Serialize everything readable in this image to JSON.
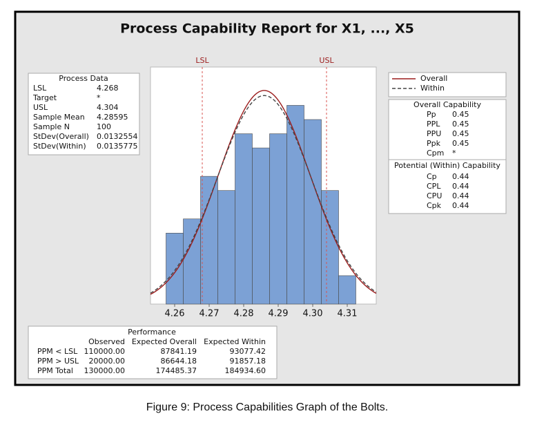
{
  "chart_data": {
    "type": "histogram",
    "title": "Process Capability Report for X1, ..., X5",
    "bins": [
      4.2575,
      4.2625,
      4.2675,
      4.2725,
      4.2775,
      4.2825,
      4.2875,
      4.2925,
      4.2975,
      4.3025,
      4.3075,
      4.3125
    ],
    "counts": [
      5,
      6,
      9,
      8,
      12,
      11,
      12,
      14,
      13,
      8,
      2
    ],
    "color": "#7ca1d5",
    "xlim": [
      4.253,
      4.3184
    ],
    "xticks": [
      4.26,
      4.27,
      4.28,
      4.29,
      {
        "value": 4.3,
        "label": "4.30"
      },
      4.31
    ],
    "ylim": [
      0,
      16.7
    ],
    "reference_lines": [
      {
        "label": "LSL",
        "value": 4.268
      },
      {
        "label": "USL",
        "value": 4.304
      }
    ],
    "reference_color": "#d9534f",
    "curves": [
      {
        "name": "Overall",
        "color": "#9b1c1c",
        "dashed": false
      },
      {
        "name": "Within",
        "color": "#444444",
        "dashed": true
      }
    ]
  },
  "process_data": {
    "title": "Process Data",
    "rows": [
      [
        "LSL",
        4.268
      ],
      [
        "Target",
        "*"
      ],
      [
        "USL",
        4.304
      ],
      [
        "Sample Mean",
        4.28595
      ],
      [
        "Sample N",
        100
      ],
      [
        "StDev(Overall)",
        0.0132554
      ],
      [
        "StDev(Within)",
        0.0135775
      ]
    ]
  },
  "overall_capability": {
    "title": "Overall Capability",
    "rows": [
      [
        "Pp",
        "0.45"
      ],
      [
        "PPL",
        "0.45"
      ],
      [
        "PPU",
        "0.45"
      ],
      [
        "Ppk",
        "0.45"
      ],
      [
        "Cpm",
        "*"
      ]
    ]
  },
  "potential_capability": {
    "title": "Potential (Within) Capability",
    "rows": [
      [
        "Cp",
        "0.44"
      ],
      [
        "CPL",
        "0.44"
      ],
      [
        "CPU",
        "0.44"
      ],
      [
        "Cpk",
        "0.44"
      ]
    ]
  },
  "performance": {
    "title": "Performance",
    "columns": [
      "Observed",
      "Expected Overall",
      "Expected Within"
    ],
    "rows": [
      [
        "PPM < LSL",
        "110000.00",
        "87841.19",
        "93077.42"
      ],
      [
        "PPM > USL",
        "20000.00",
        "86644.18",
        "91857.18"
      ],
      [
        "PPM Total",
        "130000.00",
        "174485.37",
        "184934.60"
      ]
    ]
  },
  "caption": "Figure 9: Process Capabilities Graph of the Bolts."
}
